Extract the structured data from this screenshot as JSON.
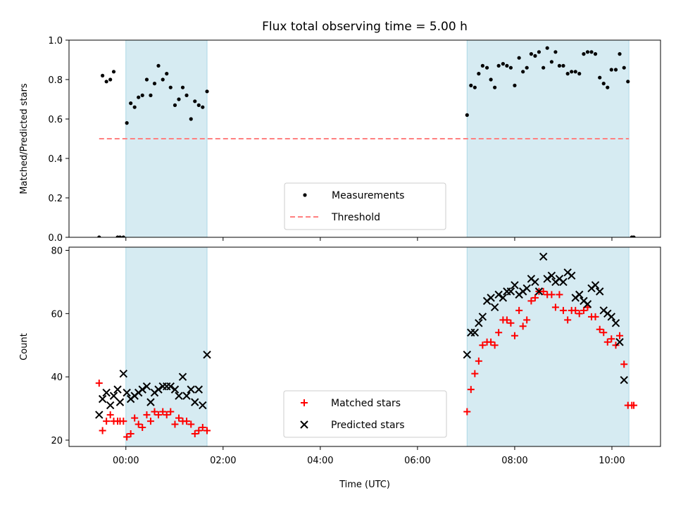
{
  "colors": {
    "shade": "#add8e6",
    "measurement": "#000000",
    "threshold": "#ff8080",
    "matched": "#ff0000",
    "predicted": "#000000"
  },
  "chart_data": [
    {
      "type": "scatter",
      "title": "Flux total observing time = 5.00 h",
      "xlabel": "",
      "ylabel": "Matched/Predicted stars",
      "xlim": [
        -1.17,
        11.0
      ],
      "ylim": [
        0.0,
        1.0
      ],
      "x_ticks": [
        0,
        2,
        4,
        6,
        8,
        10
      ],
      "y_ticks": [
        0.0,
        0.2,
        0.4,
        0.6,
        0.8,
        1.0
      ],
      "y_tick_labels": [
        "0.0",
        "0.2",
        "0.4",
        "0.6",
        "0.8",
        "1.0"
      ],
      "shaded_intervals_h": [
        [
          0.0,
          1.67
        ],
        [
          7.02,
          10.35
        ]
      ],
      "threshold": {
        "value": 0.5,
        "x_range": [
          -0.55,
          10.35
        ]
      },
      "legend": {
        "location": "lower-center",
        "entries": [
          "Measurements",
          "Threshold"
        ]
      },
      "series": [
        {
          "name": "Measurements",
          "x": [
            -0.55,
            -0.48,
            -0.4,
            -0.32,
            -0.25,
            -0.17,
            -0.12,
            -0.05,
            0.02,
            0.1,
            0.18,
            0.26,
            0.34,
            0.43,
            0.51,
            0.59,
            0.67,
            0.76,
            0.84,
            0.92,
            1.01,
            1.09,
            1.17,
            1.25,
            1.34,
            1.42,
            1.5,
            1.58,
            1.67,
            7.02,
            7.1,
            7.18,
            7.26,
            7.34,
            7.43,
            7.51,
            7.59,
            7.67,
            7.76,
            7.84,
            7.92,
            8.0,
            8.09,
            8.17,
            8.25,
            8.34,
            8.42,
            8.5,
            8.59,
            8.67,
            8.76,
            8.84,
            8.92,
            9.0,
            9.09,
            9.17,
            9.25,
            9.33,
            9.42,
            9.5,
            9.58,
            9.66,
            9.75,
            9.83,
            9.91,
            9.99,
            10.08,
            10.16,
            10.25,
            10.33,
            10.41,
            10.45
          ],
          "y": [
            0.0,
            0.82,
            0.79,
            0.8,
            0.84,
            0.0,
            0.0,
            0.0,
            0.58,
            0.68,
            0.66,
            0.71,
            0.72,
            0.8,
            0.72,
            0.78,
            0.87,
            0.8,
            0.83,
            0.76,
            0.67,
            0.7,
            0.76,
            0.72,
            0.6,
            0.69,
            0.67,
            0.66,
            0.74,
            0.62,
            0.77,
            0.76,
            0.83,
            0.87,
            0.86,
            0.8,
            0.76,
            0.87,
            0.88,
            0.87,
            0.86,
            0.77,
            0.91,
            0.84,
            0.86,
            0.93,
            0.92,
            0.94,
            0.86,
            0.96,
            0.89,
            0.94,
            0.87,
            0.87,
            0.83,
            0.84,
            0.84,
            0.83,
            0.93,
            0.94,
            0.94,
            0.93,
            0.81,
            0.78,
            0.76,
            0.85,
            0.85,
            0.93,
            0.86,
            0.79,
            0.0,
            0.0
          ]
        }
      ]
    },
    {
      "type": "scatter",
      "title": "",
      "xlabel": "Time (UTC)",
      "ylabel": "Count",
      "xlim": [
        -1.17,
        11.0
      ],
      "ylim": [
        18,
        81
      ],
      "x_ticks": [
        0,
        2,
        4,
        6,
        8,
        10
      ],
      "x_tick_labels": [
        "00:00",
        "02:00",
        "04:00",
        "06:00",
        "08:00",
        "10:00"
      ],
      "y_ticks": [
        20,
        40,
        60,
        80
      ],
      "y_tick_labels": [
        "20",
        "40",
        "60",
        "80"
      ],
      "shaded_intervals_h": [
        [
          0.0,
          1.67
        ],
        [
          7.02,
          10.35
        ]
      ],
      "legend": {
        "location": "lower-center",
        "entries": [
          "Matched stars",
          "Predicted stars"
        ]
      },
      "series": [
        {
          "name": "Matched stars",
          "x": [
            -0.55,
            -0.48,
            -0.4,
            -0.32,
            -0.25,
            -0.17,
            -0.12,
            -0.05,
            0.02,
            0.1,
            0.18,
            0.26,
            0.34,
            0.43,
            0.51,
            0.59,
            0.67,
            0.76,
            0.84,
            0.92,
            1.01,
            1.09,
            1.17,
            1.25,
            1.34,
            1.42,
            1.5,
            1.58,
            1.67,
            7.02,
            7.1,
            7.18,
            7.26,
            7.34,
            7.43,
            7.51,
            7.59,
            7.67,
            7.76,
            7.84,
            7.92,
            8.0,
            8.09,
            8.17,
            8.25,
            8.34,
            8.42,
            8.5,
            8.59,
            8.67,
            8.76,
            8.84,
            8.92,
            9.0,
            9.09,
            9.17,
            9.25,
            9.33,
            9.42,
            9.5,
            9.58,
            9.66,
            9.75,
            9.83,
            9.91,
            9.99,
            10.08,
            10.16,
            10.25,
            10.33,
            10.41,
            10.45
          ],
          "y": [
            38,
            23,
            26,
            28,
            26,
            26,
            26,
            26,
            21,
            22,
            27,
            25,
            24,
            28,
            26,
            29,
            28,
            29,
            28,
            29,
            25,
            27,
            26,
            26,
            25,
            22,
            23,
            24,
            23,
            29,
            36,
            41,
            45,
            50,
            51,
            51,
            50,
            54,
            58,
            58,
            57,
            53,
            61,
            56,
            58,
            64,
            65,
            67,
            67,
            66,
            66,
            62,
            66,
            61,
            58,
            61,
            61,
            60,
            61,
            62,
            59,
            59,
            55,
            54,
            51,
            52,
            50,
            53,
            44,
            31,
            31,
            31
          ]
        },
        {
          "name": "Predicted stars",
          "x": [
            -0.55,
            -0.48,
            -0.4,
            -0.32,
            -0.25,
            -0.17,
            -0.12,
            -0.05,
            0.02,
            0.1,
            0.18,
            0.26,
            0.34,
            0.43,
            0.51,
            0.59,
            0.67,
            0.76,
            0.84,
            0.92,
            1.01,
            1.09,
            1.17,
            1.25,
            1.34,
            1.42,
            1.5,
            1.58,
            1.67,
            7.02,
            7.1,
            7.18,
            7.26,
            7.34,
            7.43,
            7.51,
            7.59,
            7.67,
            7.76,
            7.84,
            7.92,
            8.0,
            8.09,
            8.17,
            8.25,
            8.34,
            8.42,
            8.5,
            8.59,
            8.67,
            8.76,
            8.84,
            8.92,
            9.0,
            9.09,
            9.17,
            9.25,
            9.33,
            9.42,
            9.5,
            9.58,
            9.66,
            9.75,
            9.83,
            9.91,
            9.99,
            10.08,
            10.16,
            10.25,
            10.33,
            10.41,
            10.45
          ],
          "y": [
            28,
            33,
            35,
            31,
            34,
            36,
            32,
            41,
            35,
            33,
            34,
            35,
            36,
            37,
            32,
            35,
            36,
            37,
            37,
            37,
            36,
            34,
            40,
            34,
            36,
            32,
            36,
            31,
            47,
            47,
            54,
            54,
            57,
            59,
            64,
            65,
            62,
            66,
            65,
            67,
            67,
            69,
            66,
            67,
            68,
            71,
            70,
            67,
            78,
            71,
            72,
            70,
            71,
            70,
            73,
            72,
            65,
            66,
            64,
            63,
            68,
            69,
            67,
            61,
            60,
            59,
            57,
            51,
            39,
            null,
            null,
            null
          ]
        }
      ]
    }
  ]
}
